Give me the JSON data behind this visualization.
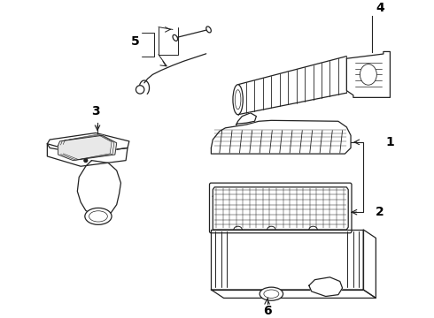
{
  "background": "#ffffff",
  "line_color": "#222222",
  "label_color": "#000000",
  "figsize": [
    4.9,
    3.6
  ],
  "dpi": 100,
  "lw": 0.9
}
